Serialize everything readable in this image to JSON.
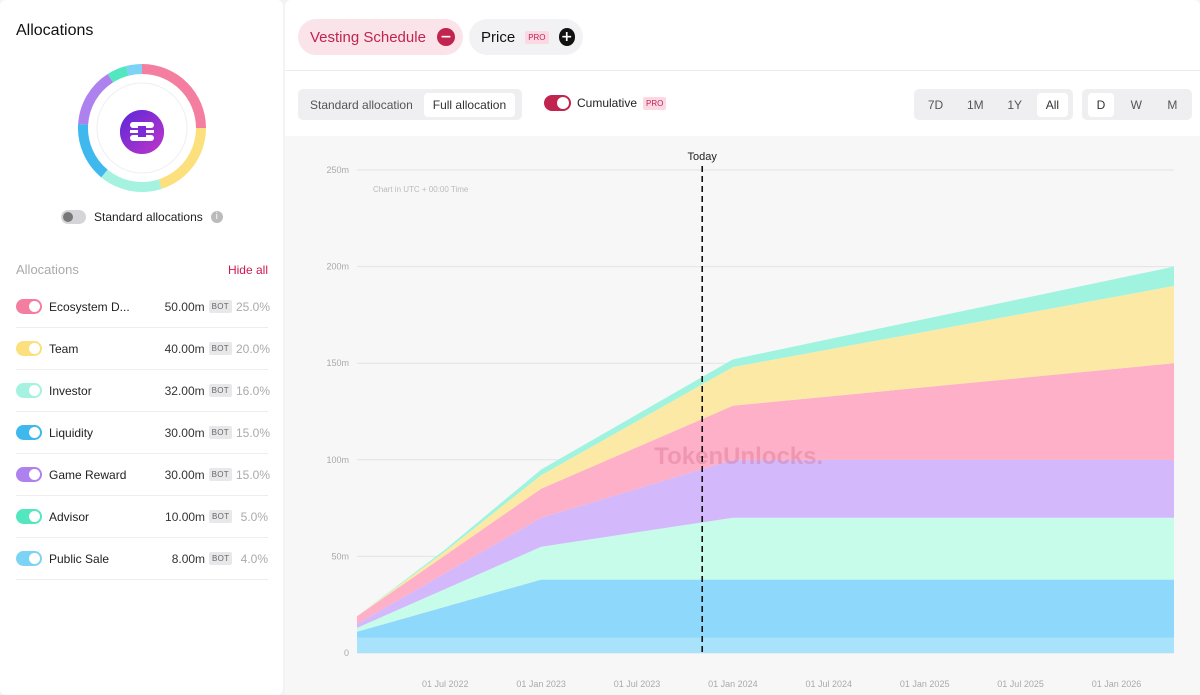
{
  "left": {
    "title": "Allocations",
    "standard_toggle_label": "Standard allocations",
    "info_glyph": "i",
    "list_header": "Allocations",
    "hide_all": "Hide all",
    "items": [
      {
        "name": "Ecosystem D...",
        "amount": "50.00m",
        "badge": "BOT",
        "pct": "25.0%",
        "color": "#f37ea0"
      },
      {
        "name": "Team",
        "amount": "40.00m",
        "badge": "BOT",
        "pct": "20.0%",
        "color": "#fbe07d"
      },
      {
        "name": "Investor",
        "amount": "32.00m",
        "badge": "BOT",
        "pct": "16.0%",
        "color": "#a6f2e0"
      },
      {
        "name": "Liquidity",
        "amount": "30.00m",
        "badge": "BOT",
        "pct": "15.0%",
        "color": "#3fb8ee"
      },
      {
        "name": "Game Reward",
        "amount": "30.00m",
        "badge": "BOT",
        "pct": "15.0%",
        "color": "#ad82ee"
      },
      {
        "name": "Advisor",
        "amount": "10.00m",
        "badge": "BOT",
        "pct": "5.0%",
        "color": "#53e7c0"
      },
      {
        "name": "Public Sale",
        "amount": "8.00m",
        "badge": "BOT",
        "pct": "4.0%",
        "color": "#7dd3f5"
      }
    ]
  },
  "tabs": {
    "vesting": "Vesting Schedule",
    "vesting_icon": "−",
    "price": "Price",
    "price_badge": "PRO",
    "price_icon": "+"
  },
  "controls": {
    "alloc_modes": [
      "Standard allocation",
      "Full allocation"
    ],
    "cumulative": "Cumulative",
    "cumulative_badge": "PRO",
    "ranges": [
      "7D",
      "1M",
      "1Y",
      "All"
    ],
    "granularity": [
      "D",
      "W",
      "M"
    ]
  },
  "chart_data": {
    "type": "area",
    "stacked": true,
    "y_ticks": [
      "0",
      "50m",
      "100m",
      "150m",
      "200m",
      "250m"
    ],
    "ylim": [
      0,
      250
    ],
    "x_ticks": [
      "01 Jul 2022",
      "01 Jan 2023",
      "01 Jul 2023",
      "01 Jan 2024",
      "01 Jul 2024",
      "01 Jan 2025",
      "01 Jul 2025",
      "01 Jan 2026"
    ],
    "x": [
      2022.0,
      2022.5,
      2022.04,
      2022.5,
      2023.0,
      2024.0,
      2026.0,
      2026.3
    ],
    "today_label": "Today",
    "today_x": 2023.84,
    "note": "Chart in UTC + 00:00 Time",
    "watermark": "TokenUnlocks.",
    "series": [
      {
        "name": "Public Sale",
        "color": "#a8e3fb",
        "points": [
          [
            2022.04,
            8
          ],
          [
            2023.0,
            8
          ],
          [
            2026.3,
            8
          ]
        ]
      },
      {
        "name": "Liquidity",
        "color": "#8dd8fb",
        "points": [
          [
            2022.04,
            3
          ],
          [
            2023.0,
            30
          ],
          [
            2026.3,
            30
          ]
        ]
      },
      {
        "name": "Investor",
        "color": "#c7fbea",
        "points": [
          [
            2022.04,
            2
          ],
          [
            2023.0,
            17
          ],
          [
            2024.0,
            32
          ],
          [
            2026.3,
            32
          ]
        ]
      },
      {
        "name": "Game Reward",
        "color": "#d3b8fb",
        "points": [
          [
            2022.04,
            2
          ],
          [
            2023.0,
            15
          ],
          [
            2024.0,
            30
          ],
          [
            2026.3,
            30
          ]
        ]
      },
      {
        "name": "Ecosystem D...",
        "color": "#fdb0c8",
        "points": [
          [
            2022.04,
            4
          ],
          [
            2023.0,
            15
          ],
          [
            2024.0,
            28
          ],
          [
            2026.3,
            50
          ]
        ]
      },
      {
        "name": "Team",
        "color": "#fde9a6",
        "points": [
          [
            2022.04,
            0
          ],
          [
            2022.5,
            2
          ],
          [
            2023.0,
            7
          ],
          [
            2024.0,
            20
          ],
          [
            2026.3,
            40
          ]
        ]
      },
      {
        "name": "Advisor",
        "color": "#a0f4df",
        "points": [
          [
            2022.04,
            0
          ],
          [
            2022.5,
            1
          ],
          [
            2023.0,
            3
          ],
          [
            2024.0,
            4
          ],
          [
            2026.3,
            10
          ]
        ]
      }
    ]
  }
}
